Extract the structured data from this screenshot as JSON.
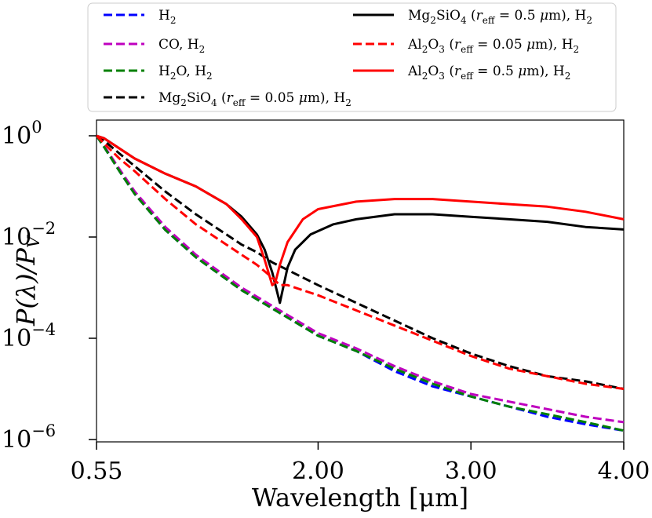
{
  "chart_data": {
    "type": "line",
    "title": "",
    "xlabel": "Wavelength [μm]",
    "ylabel": "P(λ)/P_V",
    "ylabel_parts": {
      "main": "P(λ)/P",
      "sub": "V"
    },
    "xscale": "linear",
    "yscale": "log",
    "xlim": [
      0.55,
      4.0
    ],
    "ylim": [
      1e-06,
      1.0
    ],
    "x_ticks": [
      0.55,
      2.0,
      3.0,
      4.0
    ],
    "x_tick_labels": [
      "0.55",
      "2.00",
      "3.00",
      "4.00"
    ],
    "y_ticks": [
      1.0,
      0.01,
      0.0001,
      1e-06
    ],
    "y_tick_labels": [
      {
        "base": "10",
        "exp": "0"
      },
      {
        "base": "10",
        "exp": "−2"
      },
      {
        "base": "10",
        "exp": "−4"
      },
      {
        "base": "10",
        "exp": "−6"
      }
    ],
    "grid": false,
    "legend_position": "top (above plot)",
    "series": [
      {
        "name": "H2",
        "legend": [
          {
            "t": "H"
          },
          {
            "t": "2",
            "sub": true
          }
        ],
        "color": "#0000ff",
        "dash": "dashed",
        "x": [
          0.55,
          0.6,
          0.7,
          0.8,
          1.0,
          1.2,
          1.5,
          1.75,
          2.0,
          2.25,
          2.5,
          2.75,
          3.0,
          3.25,
          3.5,
          3.75,
          4.0
        ],
        "y": [
          1.0,
          0.6,
          0.2,
          0.0707,
          0.0138,
          0.00398,
          0.00089,
          0.000316,
          0.000112,
          5.6e-05,
          2.24e-05,
          1.12e-05,
          7.08e-06,
          4.47e-06,
          2.82e-06,
          2e-06,
          1.5e-06
        ]
      },
      {
        "name": "CO, H2",
        "legend": [
          {
            "t": "CO, H"
          },
          {
            "t": "2",
            "sub": true
          }
        ],
        "color": "#bf00bf",
        "dash": "dashed",
        "x": [
          0.55,
          0.6,
          0.7,
          0.8,
          1.0,
          1.2,
          1.5,
          1.75,
          2.0,
          2.25,
          2.5,
          2.75,
          3.0,
          3.25,
          3.5,
          3.75,
          4.0
        ],
        "y": [
          1.0,
          0.63,
          0.22,
          0.0794,
          0.0158,
          0.00447,
          0.001,
          0.000355,
          0.000126,
          6.3e-05,
          2.82e-05,
          1.41e-05,
          7.94e-06,
          5.6e-06,
          3.98e-06,
          2.82e-06,
          2.2e-06
        ]
      },
      {
        "name": "H2O, H2",
        "legend": [
          {
            "t": "H"
          },
          {
            "t": "2",
            "sub": true
          },
          {
            "t": "O,  H"
          },
          {
            "t": "2",
            "sub": true
          }
        ],
        "color": "#008000",
        "dash": "dashed",
        "x": [
          0.55,
          0.6,
          0.7,
          0.8,
          1.0,
          1.2,
          1.5,
          1.75,
          2.0,
          2.25,
          2.5,
          2.75,
          3.0,
          3.25,
          3.5,
          3.75,
          4.0
        ],
        "y": [
          1.0,
          0.6,
          0.2,
          0.0707,
          0.0138,
          0.00398,
          0.00089,
          0.000316,
          0.000112,
          5.6e-05,
          2.5e-05,
          1.26e-05,
          7.08e-06,
          4.47e-06,
          3.16e-06,
          2.2e-06,
          1.5e-06
        ]
      },
      {
        "name": "Mg2SiO4 (r_eff = 0.05 μm), H2",
        "legend": [
          {
            "t": "Mg"
          },
          {
            "t": "2",
            "sub": true
          },
          {
            "t": "SiO"
          },
          {
            "t": "4",
            "sub": true
          },
          {
            "t": " ("
          },
          {
            "t": "r",
            "it": true
          },
          {
            "t": "eff",
            "sub": true
          },
          {
            "t": " = 0.05 "
          },
          {
            "t": "μ",
            "it": true
          },
          {
            "t": "m), H"
          },
          {
            "t": "2",
            "sub": true
          }
        ],
        "color": "#000000",
        "dash": "dashed",
        "x": [
          0.55,
          0.6,
          0.7,
          0.8,
          1.0,
          1.2,
          1.4,
          1.5,
          1.6,
          1.7,
          1.8,
          2.0,
          2.25,
          2.5,
          2.75,
          3.0,
          3.25,
          3.5,
          3.75,
          4.0
        ],
        "y": [
          1.0,
          0.8,
          0.447,
          0.251,
          0.0794,
          0.0282,
          0.0112,
          0.00708,
          0.00501,
          0.00316,
          0.00224,
          0.00112,
          0.000501,
          0.000224,
          0.0001,
          5.01e-05,
          2.82e-05,
          1.78e-05,
          1.41e-05,
          1e-05
        ]
      },
      {
        "name": "Mg2SiO4 (r_eff = 0.5 μm), H2",
        "legend": [
          {
            "t": "Mg"
          },
          {
            "t": "2",
            "sub": true
          },
          {
            "t": "SiO"
          },
          {
            "t": "4",
            "sub": true
          },
          {
            "t": " ("
          },
          {
            "t": "r",
            "it": true
          },
          {
            "t": "eff",
            "sub": true
          },
          {
            "t": " = 0.5 "
          },
          {
            "t": "μ",
            "it": true
          },
          {
            "t": "m), H"
          },
          {
            "t": "2",
            "sub": true
          }
        ],
        "color": "#000000",
        "dash": "solid",
        "x": [
          0.55,
          0.6,
          0.7,
          0.8,
          1.0,
          1.2,
          1.4,
          1.5,
          1.6,
          1.65,
          1.7,
          1.75,
          1.8,
          1.85,
          1.95,
          2.1,
          2.25,
          2.5,
          2.75,
          3.0,
          3.25,
          3.5,
          3.75,
          4.0
        ],
        "y": [
          1.0,
          0.891,
          0.562,
          0.355,
          0.178,
          0.1,
          0.0447,
          0.0251,
          0.0112,
          0.00562,
          0.002,
          0.0005,
          0.00251,
          0.00562,
          0.0112,
          0.0178,
          0.0224,
          0.0282,
          0.0282,
          0.0251,
          0.0224,
          0.02,
          0.0158,
          0.0141
        ]
      },
      {
        "name": "Al2O3 (r_eff = 0.05 μm), H2",
        "legend": [
          {
            "t": "Al"
          },
          {
            "t": "2",
            "sub": true
          },
          {
            "t": "O"
          },
          {
            "t": "3",
            "sub": true
          },
          {
            "t": " ("
          },
          {
            "t": "r",
            "it": true
          },
          {
            "t": "eff",
            "sub": true
          },
          {
            "t": " = 0.05 "
          },
          {
            "t": "μ",
            "it": true
          },
          {
            "t": "m), H"
          },
          {
            "t": "2",
            "sub": true
          }
        ],
        "color": "#ff0000",
        "dash": "dashed",
        "x": [
          0.55,
          0.6,
          0.7,
          0.8,
          1.0,
          1.2,
          1.4,
          1.5,
          1.6,
          1.7,
          1.75,
          1.8,
          2.0,
          2.25,
          2.5,
          2.75,
          3.0,
          3.25,
          3.5,
          3.75,
          4.0
        ],
        "y": [
          1.0,
          0.708,
          0.355,
          0.2,
          0.0562,
          0.0178,
          0.00708,
          0.00447,
          0.00282,
          0.00158,
          0.00112,
          0.00112,
          0.000708,
          0.000355,
          0.000178,
          8.91e-05,
          4.47e-05,
          2.51e-05,
          1.78e-05,
          1.26e-05,
          1e-05
        ]
      },
      {
        "name": "Al2O3 (r_eff = 0.5 μm), H2",
        "legend": [
          {
            "t": "Al"
          },
          {
            "t": "2",
            "sub": true
          },
          {
            "t": "O"
          },
          {
            "t": "3",
            "sub": true
          },
          {
            "t": " ("
          },
          {
            "t": "r",
            "it": true
          },
          {
            "t": "eff",
            "sub": true
          },
          {
            "t": " = 0.5 "
          },
          {
            "t": "μ",
            "it": true
          },
          {
            "t": "m), H"
          },
          {
            "t": "2",
            "sub": true
          }
        ],
        "color": "#ff0000",
        "dash": "solid",
        "x": [
          0.55,
          0.6,
          0.7,
          0.8,
          1.0,
          1.2,
          1.4,
          1.5,
          1.6,
          1.65,
          1.7,
          1.72,
          1.75,
          1.8,
          1.9,
          2.0,
          2.25,
          2.5,
          2.75,
          3.0,
          3.25,
          3.5,
          3.75,
          4.0
        ],
        "y": [
          1.0,
          0.891,
          0.562,
          0.355,
          0.178,
          0.1,
          0.0447,
          0.0224,
          0.01,
          0.00355,
          0.00112,
          0.00126,
          0.00282,
          0.00794,
          0.0224,
          0.0355,
          0.0501,
          0.0562,
          0.0562,
          0.0501,
          0.0447,
          0.0398,
          0.0316,
          0.0224
        ]
      }
    ]
  }
}
